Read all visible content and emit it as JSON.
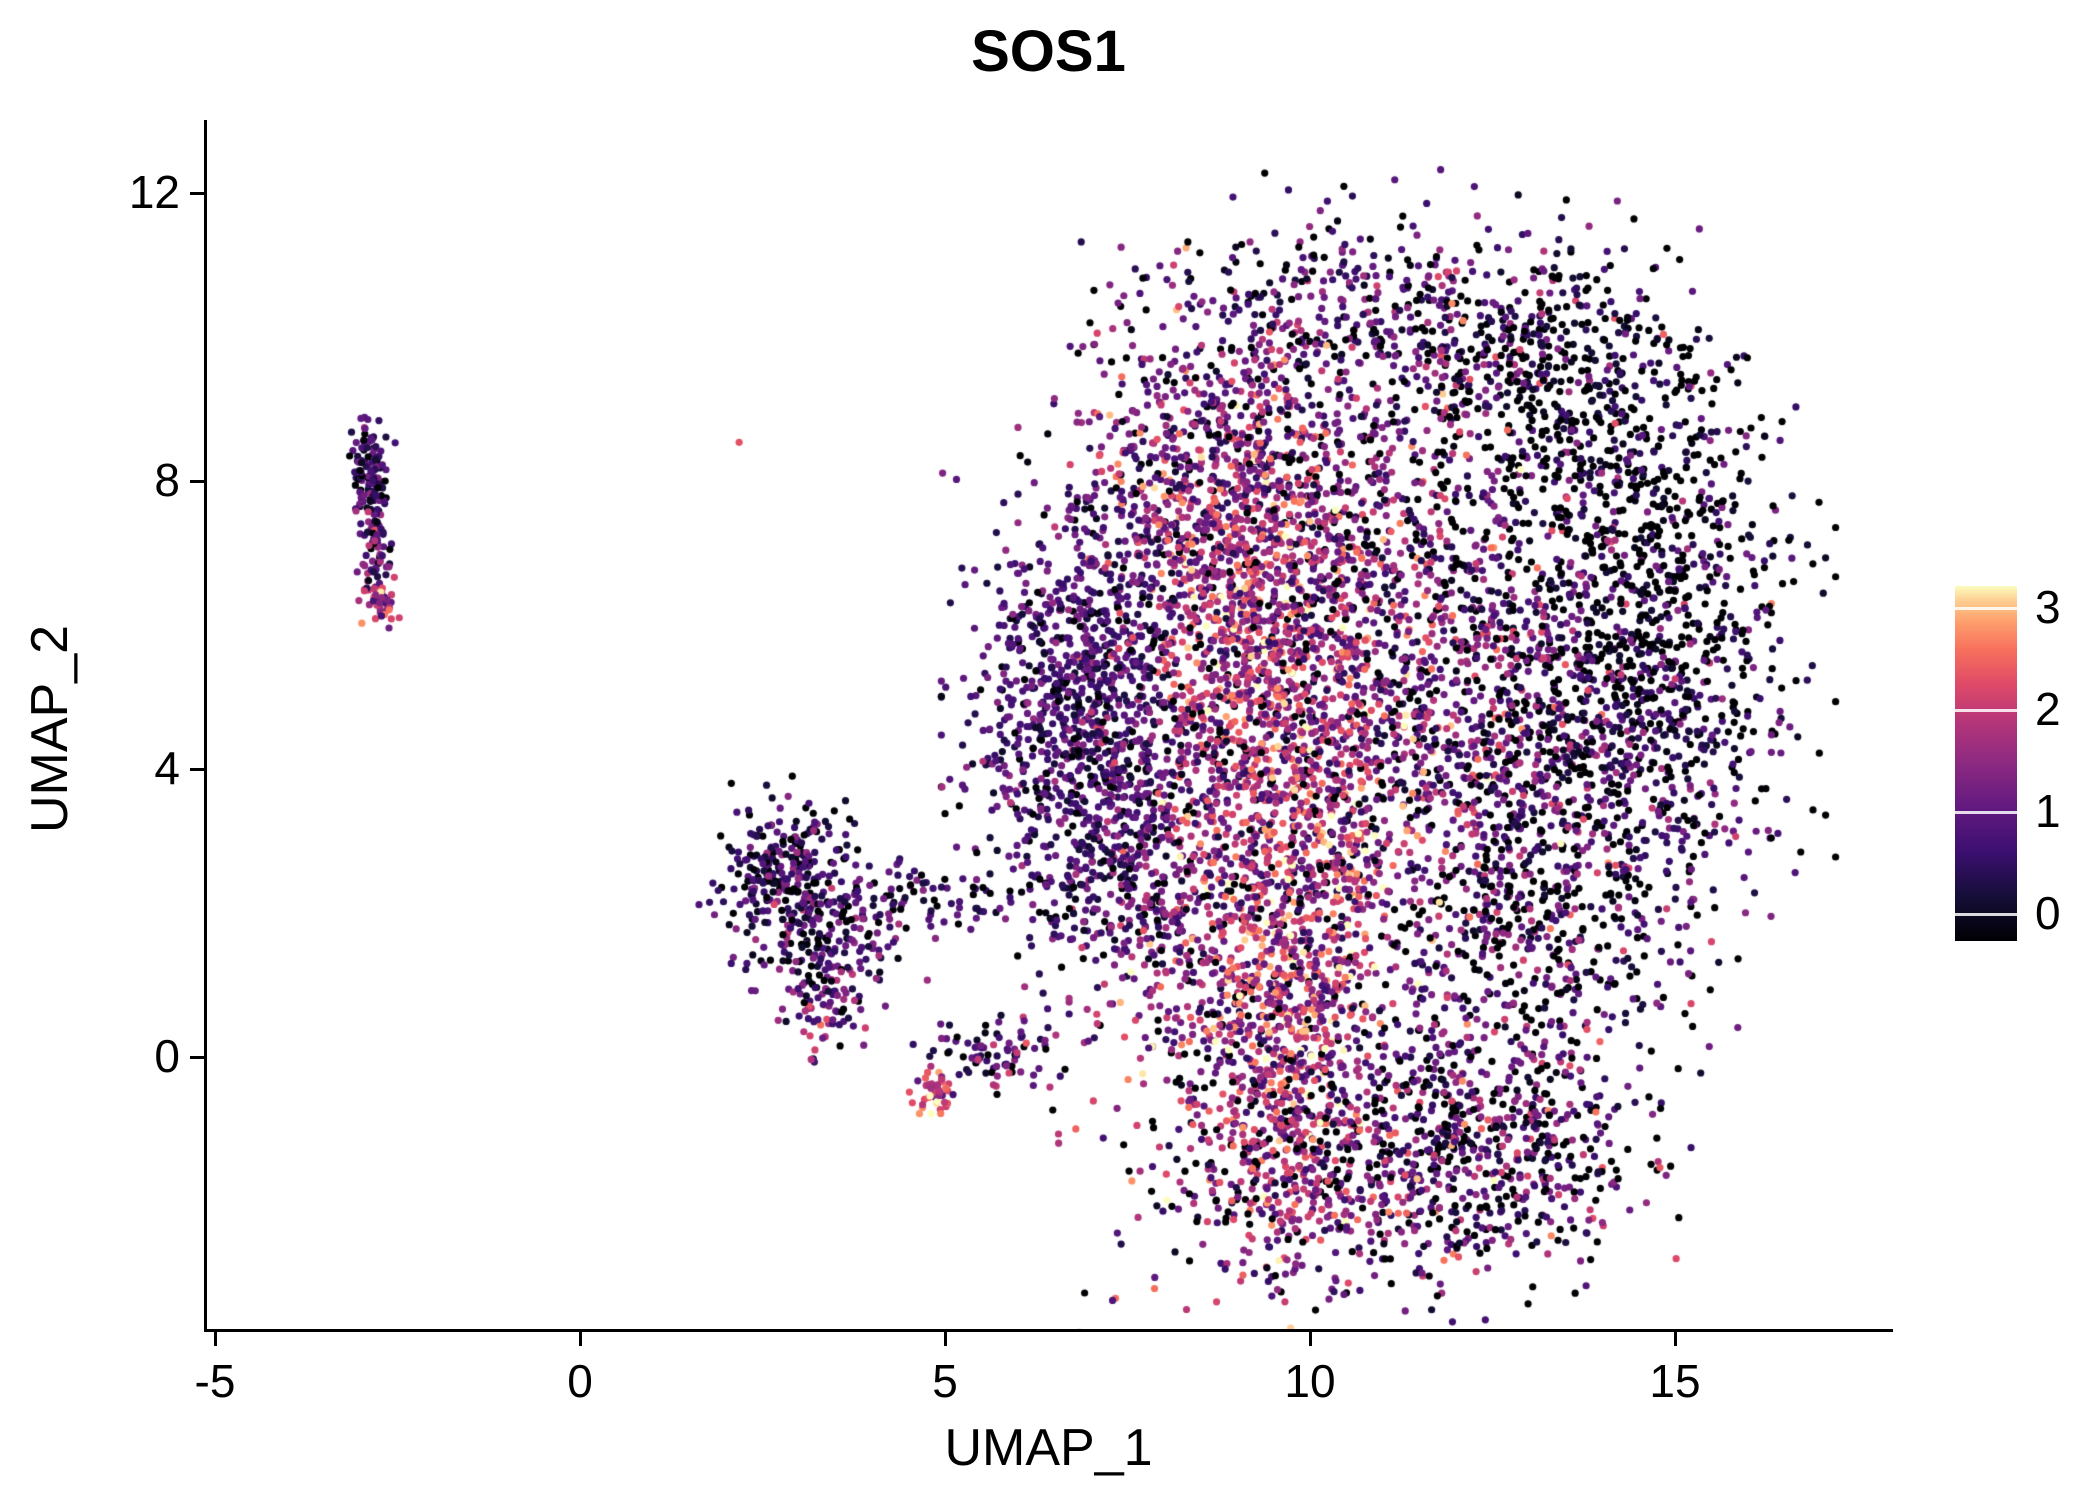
{
  "chart_data": {
    "type": "scatter",
    "title": "SOS1",
    "xlabel": "UMAP_1",
    "ylabel": "UMAP_2",
    "x_ticks": [
      -5,
      0,
      5,
      10,
      15
    ],
    "y_ticks": [
      0,
      4,
      8,
      12
    ],
    "xlim": [
      -5.1,
      17.9
    ],
    "ylim": [
      -3.8,
      12.7
    ],
    "grid": false,
    "background": "#ffffff",
    "point_radius_px": 3.6,
    "colorbar": {
      "ticks": [
        0,
        1,
        2,
        3
      ],
      "vmin": 0,
      "vmax": 3.25,
      "legend_position": "right",
      "colormap": "magma",
      "stops": [
        [
          0.0,
          "#000004"
        ],
        [
          0.12,
          "#140E36"
        ],
        [
          0.25,
          "#3B0F70"
        ],
        [
          0.38,
          "#641A80"
        ],
        [
          0.5,
          "#8C2981"
        ],
        [
          0.62,
          "#B63679"
        ],
        [
          0.72,
          "#DE4968"
        ],
        [
          0.82,
          "#F7705C"
        ],
        [
          0.9,
          "#FE9F6D"
        ],
        [
          0.96,
          "#FECF92"
        ],
        [
          1.0,
          "#FCFDBF"
        ]
      ]
    },
    "clusters": [
      {
        "cx": -2.87,
        "cy": 7.95,
        "sx": 0.13,
        "sy": 0.42,
        "n": 130,
        "mean": 0.9,
        "sd": 0.5,
        "p_zero": 0.1
      },
      {
        "cx": -2.8,
        "cy": 6.95,
        "sx": 0.1,
        "sy": 0.28,
        "n": 45,
        "mean": 1.1,
        "sd": 0.5,
        "p_zero": 0.05
      },
      {
        "cx": -2.72,
        "cy": 6.35,
        "sx": 0.12,
        "sy": 0.17,
        "n": 45,
        "mean": 1.9,
        "sd": 0.6,
        "p_zero": 0.02
      },
      {
        "cx": 2.8,
        "cy": 2.6,
        "sx": 0.45,
        "sy": 0.5,
        "n": 260,
        "mean": 0.8,
        "sd": 0.5,
        "p_zero": 0.15
      },
      {
        "cx": 3.4,
        "cy": 1.6,
        "sx": 0.5,
        "sy": 0.45,
        "n": 160,
        "mean": 1.0,
        "sd": 0.6,
        "p_zero": 0.1
      },
      {
        "cx": 4.9,
        "cy": 2.2,
        "sx": 0.8,
        "sy": 0.28,
        "n": 90,
        "mean": 0.9,
        "sd": 0.6,
        "p_zero": 0.1
      },
      {
        "cx": 3.35,
        "cy": 0.7,
        "sx": 0.25,
        "sy": 0.35,
        "n": 60,
        "mean": 1.2,
        "sd": 0.7,
        "p_zero": 0.05
      },
      {
        "cx": 5.7,
        "cy": 0.05,
        "sx": 0.5,
        "sy": 0.22,
        "n": 85,
        "mean": 1.1,
        "sd": 0.7,
        "p_zero": 0.1
      },
      {
        "cx": 4.85,
        "cy": -0.55,
        "sx": 0.13,
        "sy": 0.2,
        "n": 40,
        "mean": 2.3,
        "sd": 0.5,
        "p_zero": 0.0
      },
      {
        "cx": 6.9,
        "cy": 5.0,
        "sx": 0.75,
        "sy": 1.2,
        "n": 900,
        "mean": 0.9,
        "sd": 0.45,
        "p_zero": 0.08
      },
      {
        "cx": 7.6,
        "cy": 2.8,
        "sx": 0.8,
        "sy": 1.0,
        "n": 500,
        "mean": 1.0,
        "sd": 0.55,
        "p_zero": 0.1
      },
      {
        "cx": 8.6,
        "cy": 8.2,
        "sx": 1.0,
        "sy": 1.2,
        "n": 650,
        "mean": 1.4,
        "sd": 0.7,
        "p_zero": 0.08
      },
      {
        "cx": 9.2,
        "cy": 6.0,
        "sx": 0.7,
        "sy": 1.4,
        "n": 600,
        "mean": 2.2,
        "sd": 0.6,
        "p_zero": 0.03
      },
      {
        "cx": 10.3,
        "cy": 4.2,
        "sx": 1.3,
        "sy": 1.6,
        "n": 900,
        "mean": 1.5,
        "sd": 0.8,
        "p_zero": 0.1
      },
      {
        "cx": 9.8,
        "cy": 2.2,
        "sx": 0.8,
        "sy": 1.2,
        "n": 400,
        "mean": 2.1,
        "sd": 0.7,
        "p_zero": 0.05
      },
      {
        "cx": 11.2,
        "cy": 10.2,
        "sx": 1.6,
        "sy": 0.9,
        "n": 450,
        "mean": 1.0,
        "sd": 0.7,
        "p_zero": 0.2
      },
      {
        "cx": 13.5,
        "cy": 9.3,
        "sx": 1.0,
        "sy": 0.9,
        "n": 400,
        "mean": 0.5,
        "sd": 0.5,
        "p_zero": 0.45
      },
      {
        "cx": 14.6,
        "cy": 6.0,
        "sx": 1.0,
        "sy": 1.8,
        "n": 900,
        "mean": 0.6,
        "sd": 0.55,
        "p_zero": 0.4
      },
      {
        "cx": 13.2,
        "cy": 4.5,
        "sx": 1.2,
        "sy": 1.5,
        "n": 700,
        "mean": 1.1,
        "sd": 0.7,
        "p_zero": 0.2
      },
      {
        "cx": 13.0,
        "cy": 1.5,
        "sx": 1.2,
        "sy": 1.2,
        "n": 500,
        "mean": 0.9,
        "sd": 0.7,
        "p_zero": 0.25
      },
      {
        "cx": 10.8,
        "cy": 7.0,
        "sx": 1.3,
        "sy": 1.5,
        "n": 700,
        "mean": 1.3,
        "sd": 0.8,
        "p_zero": 0.12
      },
      {
        "cx": 10.8,
        "cy": -1.6,
        "sx": 1.7,
        "sy": 0.9,
        "n": 650,
        "mean": 1.2,
        "sd": 0.8,
        "p_zero": 0.15
      },
      {
        "cx": 9.6,
        "cy": -0.8,
        "sx": 0.6,
        "sy": 1.0,
        "n": 300,
        "mean": 2.0,
        "sd": 0.7,
        "p_zero": 0.05
      },
      {
        "cx": 12.6,
        "cy": -1.2,
        "sx": 0.9,
        "sy": 0.8,
        "n": 300,
        "mean": 1.0,
        "sd": 0.7,
        "p_zero": 0.25
      },
      {
        "cx": 9.3,
        "cy": 0.8,
        "sx": 1.0,
        "sy": 0.9,
        "n": 400,
        "mean": 1.6,
        "sd": 0.8,
        "p_zero": 0.1
      },
      {
        "cx": 15.35,
        "cy": 9.4,
        "sx": 0.12,
        "sy": 0.08,
        "n": 3,
        "mean": 2.0,
        "sd": 0.3,
        "p_zero": 0.0
      },
      {
        "cx": 10.5,
        "cy": 5.0,
        "sx": 3.2,
        "sy": 3.2,
        "n": 70,
        "mean": 1.1,
        "sd": 0.8,
        "p_zero": 0.2
      }
    ]
  }
}
